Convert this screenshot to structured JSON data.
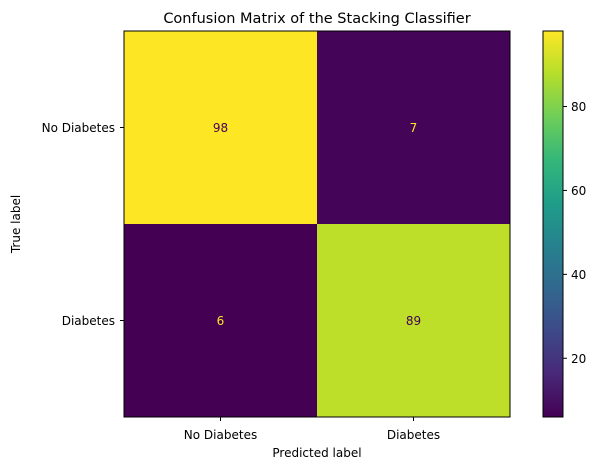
{
  "chart_data": {
    "type": "heatmap",
    "title": "Confusion Matrix of the Stacking Classifier",
    "xlabel": "Predicted label",
    "ylabel": "True label",
    "x_categories": [
      "No Diabetes",
      "Diabetes"
    ],
    "y_categories": [
      "No Diabetes",
      "Diabetes"
    ],
    "values": [
      [
        98,
        7
      ],
      [
        6,
        89
      ]
    ],
    "colormap": "viridis",
    "colorbar": {
      "range": [
        6,
        98
      ],
      "ticks": [
        20,
        40,
        60,
        80
      ]
    },
    "text_colors": {
      "on_dark": "#fde725",
      "on_light": "#440154"
    }
  }
}
